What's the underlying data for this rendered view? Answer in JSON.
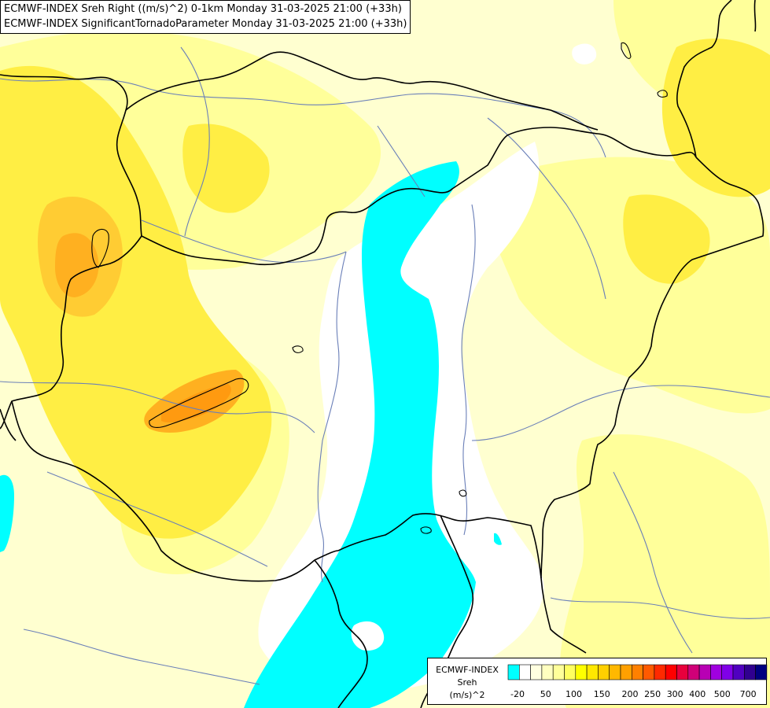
{
  "title": {
    "line1": "ECMWF-INDEX Sreh Right ((m/s)^2) 0-1km Monday 31-03-2025 21:00 (+33h)",
    "line2": "ECMWF-INDEX SignificantTornadoParameter Monday 31-03-2025 21:00 (+33h)"
  },
  "legend": {
    "name": "ECMWF-INDEX",
    "variable": "Sreh",
    "unit": "(m/s)^2",
    "colors": [
      "#00ffff",
      "#ffffff",
      "#ffffe0",
      "#ffffc0",
      "#ffff9a",
      "#ffff60",
      "#ffff00",
      "#ffe800",
      "#ffd000",
      "#ffb800",
      "#ffa000",
      "#ff8000",
      "#ff5a00",
      "#ff2a00",
      "#ff0000",
      "#e8003c",
      "#d00078",
      "#b800b4",
      "#a000e0",
      "#8000e8",
      "#5000c0",
      "#300090",
      "#000080"
    ],
    "tick_labels": [
      "-20",
      "50",
      "100",
      "150",
      "200",
      "250",
      "300",
      "400",
      "500",
      "700"
    ]
  },
  "colors": {
    "cyan_region": "#00ffff",
    "white_region": "#ffffff",
    "pale_yellow": "#ffffd0",
    "light_yellow": "#ffff9a",
    "yellow": "#ffee44",
    "orange": "#ffc020",
    "border": "#000000",
    "river": "#6a7fb8"
  }
}
